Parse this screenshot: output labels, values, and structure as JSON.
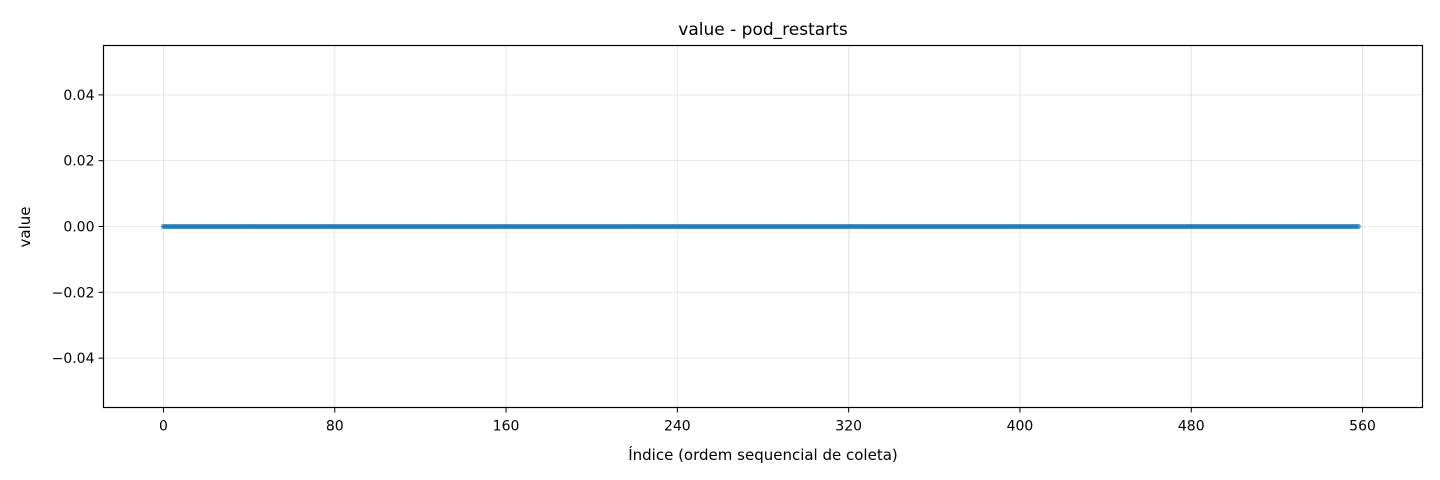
{
  "chart_data": {
    "type": "line",
    "title": "value - pod_restarts",
    "xlabel": "Índice (ordem sequencial de coleta)",
    "ylabel": "value",
    "xlim": [
      -28,
      588
    ],
    "ylim": [
      -0.055,
      0.055
    ],
    "xticks": [
      0,
      80,
      160,
      240,
      320,
      400,
      480,
      560
    ],
    "xtick_labels": [
      "0",
      "80",
      "160",
      "240",
      "320",
      "400",
      "480",
      "560"
    ],
    "yticks": [
      -0.04,
      -0.02,
      0.0,
      0.02,
      0.04
    ],
    "ytick_labels": [
      "−0.04",
      "−0.02",
      "0.00",
      "0.02",
      "0.04"
    ],
    "grid": true,
    "series": [
      {
        "x_start": 0,
        "x_end": 558,
        "x_step": 1,
        "constant_value": 0.0,
        "color": "#1f77b4",
        "marker": "circle"
      }
    ]
  }
}
